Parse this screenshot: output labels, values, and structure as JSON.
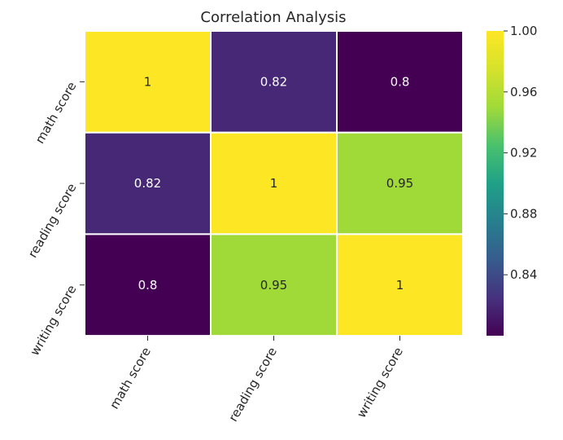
{
  "chart_data": {
    "type": "heatmap",
    "title": "Correlation Analysis",
    "rows": [
      "math score",
      "reading score",
      "writing score"
    ],
    "columns": [
      "math score",
      "reading score",
      "writing score"
    ],
    "values": [
      [
        1.0,
        0.82,
        0.8
      ],
      [
        0.82,
        1.0,
        0.95
      ],
      [
        0.8,
        0.95,
        1.0
      ]
    ],
    "annotations": [
      [
        "1",
        "0.82",
        "0.8"
      ],
      [
        "0.82",
        "1",
        "0.95"
      ],
      [
        "0.8",
        "0.95",
        "1"
      ]
    ],
    "colormap": "viridis",
    "value_range": [
      0.8,
      1.0
    ],
    "colorbar_ticks": [
      "1.00",
      "0.96",
      "0.92",
      "0.88",
      "0.84"
    ],
    "colorbar_tick_values": [
      1.0,
      0.96,
      0.92,
      0.88,
      0.84
    ],
    "cell_border_color": "#ffffff",
    "grid": false
  }
}
